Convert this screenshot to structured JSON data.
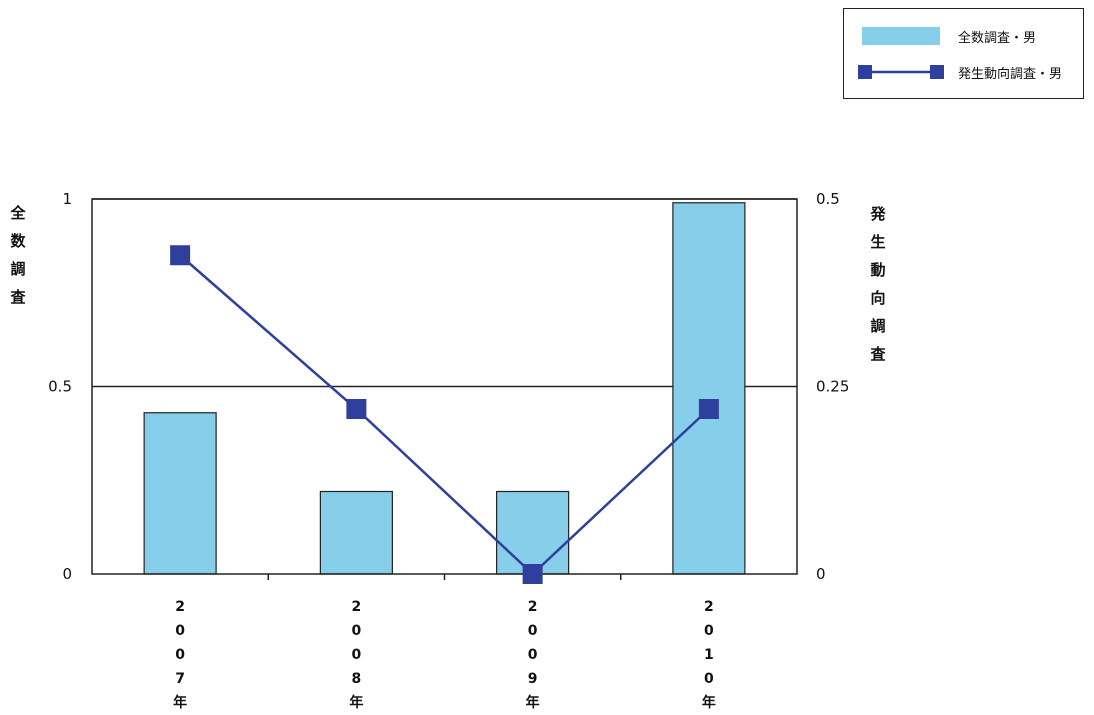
{
  "chart_data": {
    "type": "bar",
    "categories": [
      "2007年",
      "2008年",
      "2009年",
      "2010年"
    ],
    "series": [
      {
        "name": "全数調査・男",
        "type": "bar",
        "axis": "left",
        "color": "#87CEEB",
        "values": [
          0.43,
          0.22,
          0.22,
          0.99
        ]
      },
      {
        "name": "発生動向調査・男",
        "type": "line",
        "axis": "right",
        "color": "#2E3F9E",
        "values": [
          0.425,
          0.22,
          0.0,
          0.22
        ]
      }
    ],
    "y_left": {
      "label": "全数調査",
      "ylim": [
        0,
        1
      ],
      "ticks": [
        "0",
        "0.5",
        "1"
      ],
      "tick_values": [
        0,
        0.5,
        1
      ]
    },
    "y_right": {
      "label": "発生動向調査",
      "ylim": [
        0,
        0.5
      ],
      "ticks": [
        "0",
        "0.25",
        "0.5"
      ],
      "tick_values": [
        0,
        0.25,
        0.5
      ]
    },
    "grid": true,
    "legend_position": "top-right"
  }
}
